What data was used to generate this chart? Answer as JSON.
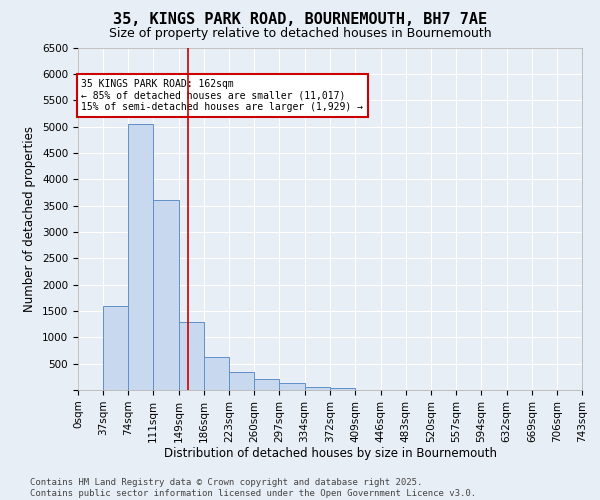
{
  "title_line1": "35, KINGS PARK ROAD, BOURNEMOUTH, BH7 7AE",
  "title_line2": "Size of property relative to detached houses in Bournemouth",
  "xlabel": "Distribution of detached houses by size in Bournemouth",
  "ylabel": "Number of detached properties",
  "bar_color": "#c8d8ee",
  "bar_edge_color": "#6090c8",
  "background_color": "#e8eef5",
  "plot_bg_color": "#e8eef5",
  "annotation_text": "35 KINGS PARK ROAD: 162sqm\n← 85% of detached houses are smaller (11,017)\n15% of semi-detached houses are larger (1,929) →",
  "property_size": 162,
  "vertical_line_color": "#cc0000",
  "annotation_box_color": "#ffffff",
  "annotation_box_edge": "#cc0000",
  "footer_line1": "Contains HM Land Registry data © Crown copyright and database right 2025.",
  "footer_line2": "Contains public sector information licensed under the Open Government Licence v3.0.",
  "bin_labels": [
    "0sqm",
    "37sqm",
    "74sqm",
    "111sqm",
    "149sqm",
    "186sqm",
    "223sqm",
    "260sqm",
    "297sqm",
    "334sqm",
    "372sqm",
    "409sqm",
    "446sqm",
    "483sqm",
    "520sqm",
    "557sqm",
    "594sqm",
    "632sqm",
    "669sqm",
    "706sqm",
    "743sqm"
  ],
  "bin_edges": [
    0,
    37,
    74,
    111,
    149,
    186,
    223,
    260,
    297,
    334,
    372,
    409,
    446,
    483,
    520,
    557,
    594,
    632,
    669,
    706,
    743
  ],
  "bar_heights": [
    0,
    1600,
    5050,
    3600,
    1300,
    630,
    350,
    200,
    130,
    60,
    30,
    0,
    0,
    0,
    0,
    0,
    0,
    0,
    0,
    0
  ],
  "ylim": [
    0,
    6500
  ],
  "yticks": [
    0,
    500,
    1000,
    1500,
    2000,
    2500,
    3000,
    3500,
    4000,
    4500,
    5000,
    5500,
    6000,
    6500
  ],
  "title_fontsize": 11,
  "subtitle_fontsize": 9,
  "axis_label_fontsize": 8.5,
  "tick_fontsize": 7.5,
  "footer_fontsize": 6.5
}
